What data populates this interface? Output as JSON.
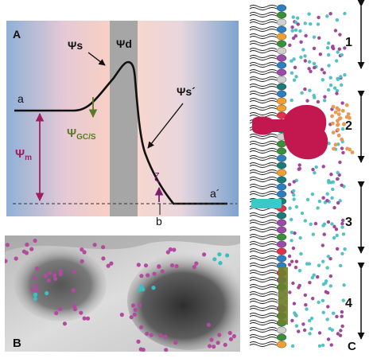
{
  "panel_a": {
    "letter": "A",
    "labels": {
      "psi_s": "Ψs",
      "psi_d": "Ψd",
      "psi_s_prime": "Ψs´",
      "a": "a",
      "a_prime": "a´",
      "psi_gcs_main": "Ψ",
      "psi_gcs_sub": "GC/S",
      "psi_m_main": "Ψ",
      "psi_m_sub": "m",
      "zeta": "ζ",
      "b": "b"
    },
    "colors": {
      "curve": "#111111",
      "psi_m": "#a01e5e",
      "psi_gcs": "#5a7a28",
      "zeta": "#7a1f6e",
      "dashed": "#333333",
      "stern_layer": "#a6a6a6"
    }
  },
  "panel_b": {
    "letter": "B",
    "colors": {
      "magenta": "#b44aa0",
      "cyan": "#3bbfc4"
    }
  },
  "panel_c": {
    "letter": "C",
    "regions": [
      "1",
      "2",
      "3",
      "4"
    ],
    "colors": {
      "magenta": "#a1479b",
      "cyan": "#53c2c6",
      "orange": "#e89a55",
      "crimson": "#c2174f",
      "teal_bar": "#3bc9c7",
      "olive": "#6f7f2a"
    }
  }
}
